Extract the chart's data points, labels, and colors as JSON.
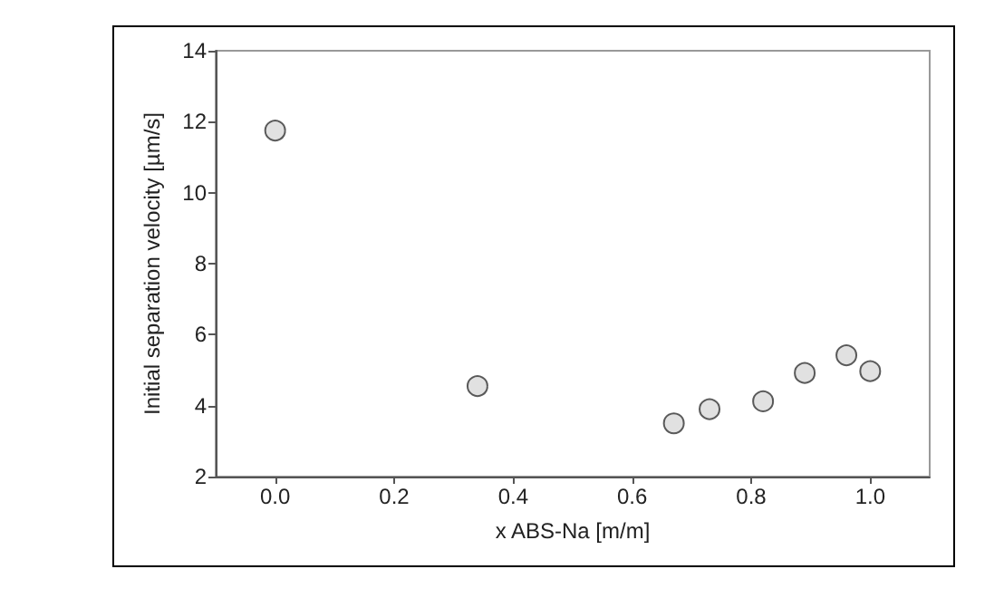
{
  "chart_data": {
    "type": "scatter",
    "xlabel": "x ABS-Na [m/m]",
    "ylabel": "Initial separation velocity [µm/s]",
    "x": [
      0,
      0.34,
      0.67,
      0.73,
      0.82,
      0.89,
      0.96,
      1.0
    ],
    "series": [
      {
        "color": "#d9d9d9",
        "values": [
          11.75,
          4.55,
          3.5,
          3.9,
          4.12,
          4.92,
          5.42,
          4.97
        ]
      }
    ],
    "xlim": [
      -0.1,
      1.1
    ],
    "xticks": [
      {
        "value": 0,
        "label": "0.0"
      },
      {
        "value": 0.2,
        "label": "0.2"
      },
      {
        "value": 0.4,
        "label": "0.4"
      },
      {
        "value": 0.6,
        "label": "0.6"
      },
      {
        "value": 0.8,
        "label": "0.8"
      },
      {
        "value": 1,
        "label": "1.0"
      }
    ],
    "ylim": [
      2,
      14
    ],
    "yticks": [
      2,
      4,
      6,
      8,
      10,
      12,
      14
    ],
    "grid": false,
    "marker": "circle"
  }
}
